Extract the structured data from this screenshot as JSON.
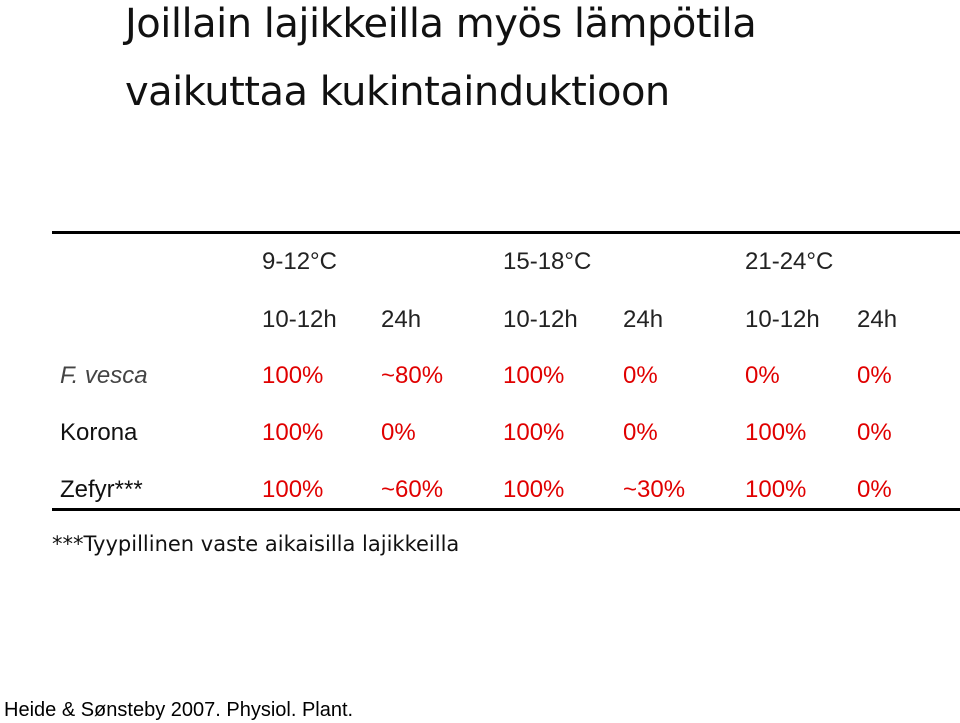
{
  "title": [
    "Joillain lajikkeilla myös lämpötila",
    "vaikuttaa kukintainduktioon"
  ],
  "table": {
    "temperatures": [
      "9-12°C",
      "15-18°C",
      "21-24°C"
    ],
    "photoperiods": [
      "10-12h",
      "24h",
      "10-12h",
      "24h",
      "10-12h",
      "24h"
    ],
    "rows": [
      {
        "label": "F. vesca",
        "cells": [
          "100%",
          "~80%",
          "100%",
          "0%",
          "0%",
          "0%"
        ]
      },
      {
        "label": "Korona",
        "cells": [
          "100%",
          "0%",
          "100%",
          "0%",
          "100%",
          "0%"
        ]
      },
      {
        "label": "Zefyr***",
        "cells": [
          "100%",
          "~60%",
          "100%",
          "~30%",
          "100%",
          "0%"
        ]
      }
    ]
  },
  "footnote": "***Tyypillinen vaste aikaisilla lajikkeilla",
  "citation": "Heide & Sønsteby 2007. Physiol. Plant."
}
